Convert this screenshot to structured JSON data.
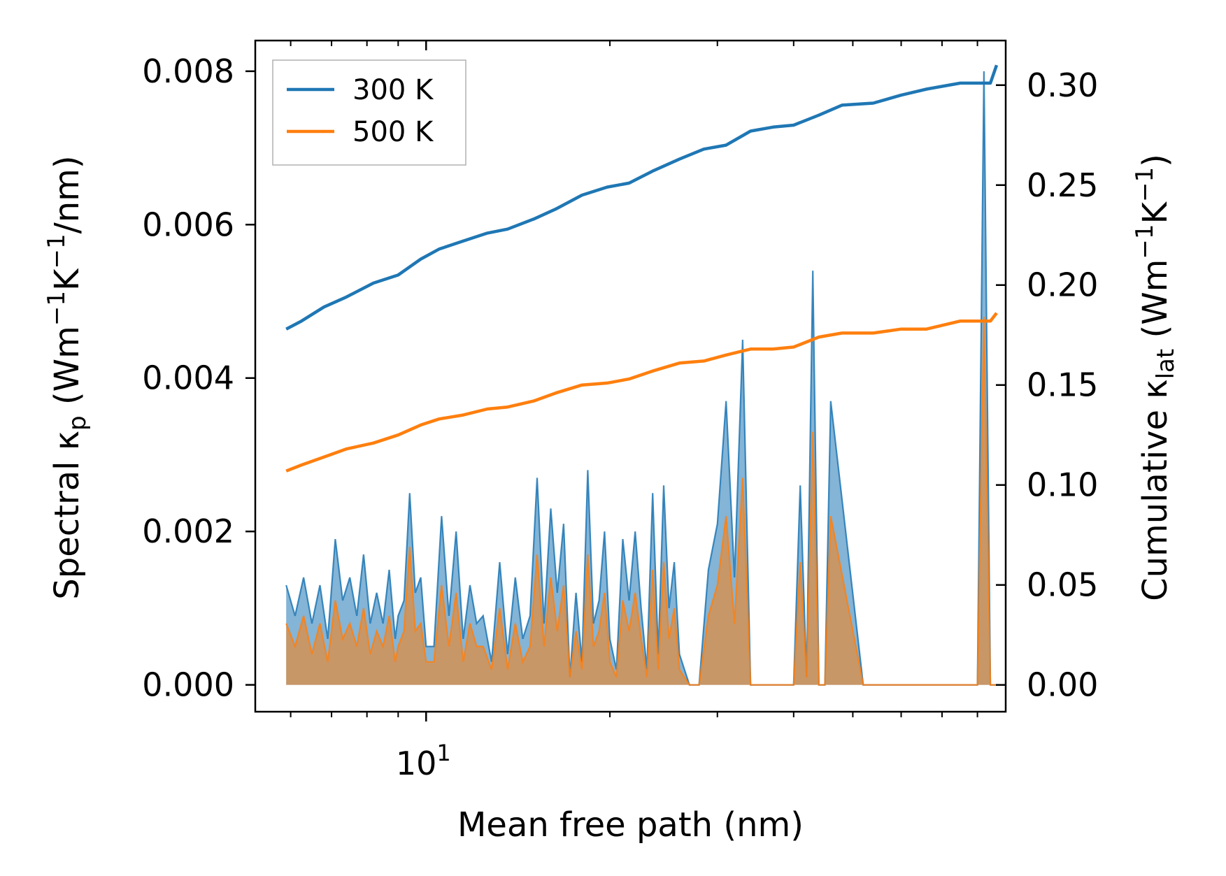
{
  "chart_data": {
    "type": "line",
    "xscale": "log",
    "xlabel": "Mean free path (nm)",
    "ylabel_left": [
      "Spectral κ",
      "p",
      " (Wm",
      "−1",
      "K",
      "−1",
      "/nm)"
    ],
    "ylabel_right": [
      "Cumulative κ",
      "lat",
      " (Wm",
      "−1",
      "K",
      "−1",
      ")"
    ],
    "xlim": [
      5.25,
      89
    ],
    "ylim_left": [
      -0.00035,
      0.0084
    ],
    "ylim_right": [
      -0.0134,
      0.3223
    ],
    "x_major_ticks": [
      {
        "value": 10,
        "base": "10",
        "exp": "1"
      }
    ],
    "x_minor_ticks": [
      6,
      7,
      8,
      9,
      20,
      30,
      40,
      50,
      60,
      70,
      80
    ],
    "y_left_ticks": [
      {
        "value": 0.0,
        "label": "0.000"
      },
      {
        "value": 0.002,
        "label": "0.002"
      },
      {
        "value": 0.004,
        "label": "0.004"
      },
      {
        "value": 0.006,
        "label": "0.006"
      },
      {
        "value": 0.008,
        "label": "0.008"
      }
    ],
    "y_right_ticks": [
      {
        "value": 0.0,
        "label": "0.00"
      },
      {
        "value": 0.05,
        "label": "0.05"
      },
      {
        "value": 0.1,
        "label": "0.10"
      },
      {
        "value": 0.15,
        "label": "0.15"
      },
      {
        "value": 0.2,
        "label": "0.20"
      },
      {
        "value": 0.25,
        "label": "0.25"
      },
      {
        "value": 0.3,
        "label": "0.30"
      }
    ],
    "legend_position": "top-left",
    "colors": {
      "s300": "#1f77b4",
      "s500": "#ff7f0e"
    },
    "cumulative_series": [
      {
        "name": "300 K",
        "color": "#1f77b4",
        "axis": "right",
        "x": [
          5.9,
          6.25,
          6.8,
          7.4,
          8.2,
          9.0,
          9.8,
          10.5,
          11.5,
          12.6,
          13.6,
          15.0,
          16.3,
          18.0,
          19.8,
          21.5,
          23.5,
          26.0,
          28.5,
          31.0,
          34.0,
          37.0,
          40.0,
          44.0,
          48.0,
          54.0,
          60.0,
          66.0,
          75.0,
          79.0,
          84.0,
          86.0
        ],
        "y": [
          0.178,
          0.182,
          0.189,
          0.194,
          0.201,
          0.205,
          0.213,
          0.218,
          0.222,
          0.226,
          0.228,
          0.233,
          0.238,
          0.245,
          0.249,
          0.251,
          0.257,
          0.263,
          0.268,
          0.27,
          0.277,
          0.279,
          0.28,
          0.285,
          0.29,
          0.291,
          0.295,
          0.298,
          0.301,
          0.301,
          0.301,
          0.31
        ]
      },
      {
        "name": "500 K",
        "color": "#ff7f0e",
        "axis": "right",
        "x": [
          5.9,
          6.25,
          6.8,
          7.4,
          8.2,
          9.0,
          9.8,
          10.5,
          11.5,
          12.6,
          13.6,
          15.0,
          16.3,
          18.0,
          19.8,
          21.5,
          23.5,
          26.0,
          28.5,
          31.0,
          34.0,
          37.0,
          40.0,
          44.0,
          48.0,
          54.0,
          60.0,
          66.0,
          75.0,
          79.0,
          84.0,
          86.0
        ],
        "y": [
          0.107,
          0.11,
          0.114,
          0.118,
          0.121,
          0.125,
          0.13,
          0.133,
          0.135,
          0.138,
          0.139,
          0.142,
          0.146,
          0.15,
          0.151,
          0.153,
          0.157,
          0.161,
          0.162,
          0.165,
          0.168,
          0.168,
          0.169,
          0.174,
          0.176,
          0.176,
          0.178,
          0.178,
          0.182,
          0.182,
          0.182,
          0.186
        ]
      }
    ],
    "spectral_series": [
      {
        "name": "300 K spectral",
        "color": "#1f77b4",
        "axis": "left",
        "x": [
          5.9,
          6.1,
          6.3,
          6.5,
          6.7,
          6.9,
          7.1,
          7.3,
          7.5,
          7.7,
          7.9,
          8.1,
          8.3,
          8.5,
          8.7,
          8.9,
          9.0,
          9.2,
          9.4,
          9.6,
          9.8,
          10.0,
          10.3,
          10.6,
          10.9,
          11.2,
          11.5,
          11.8,
          12.1,
          12.4,
          12.8,
          13.2,
          13.6,
          14.0,
          14.4,
          14.8,
          15.2,
          15.6,
          16.0,
          16.4,
          16.8,
          17.2,
          17.6,
          18.0,
          18.4,
          18.8,
          19.2,
          19.6,
          20.0,
          20.5,
          21.0,
          21.5,
          22.0,
          22.5,
          23.0,
          23.5,
          24.0,
          24.5,
          25.0,
          25.5,
          26.0,
          27.0,
          28.0,
          29.0,
          30.0,
          31.0,
          32.0,
          33.0,
          34.0,
          35.0,
          37.0,
          40.0,
          41.0,
          42.0,
          43.0,
          44.0,
          45.0,
          46.0,
          52.0,
          53.5,
          55.0,
          57.0,
          59.0,
          60.5,
          62.0,
          64.0,
          68.0,
          70.0,
          72.0,
          80.0,
          82.0,
          84.0,
          86.0
        ],
        "y": [
          0.0013,
          0.0009,
          0.0014,
          0.0008,
          0.0013,
          0.0006,
          0.0019,
          0.0011,
          0.0014,
          0.0009,
          0.0017,
          0.0008,
          0.0012,
          0.0008,
          0.0015,
          0.0006,
          0.0009,
          0.0011,
          0.0025,
          0.0012,
          0.0014,
          0.0005,
          0.0005,
          0.0022,
          0.0009,
          0.002,
          0.0006,
          0.0013,
          0.0008,
          0.0009,
          0.0003,
          0.0016,
          0.0004,
          0.0014,
          0.0006,
          0.0009,
          0.0027,
          0.0008,
          0.0023,
          0.0012,
          0.0021,
          0.0001,
          0.0012,
          0.0003,
          0.0028,
          0.0008,
          0.0011,
          0.002,
          0.0006,
          0.0002,
          0.0019,
          0.0011,
          0.002,
          0.001,
          0.0002,
          0.0025,
          0.0004,
          0.0026,
          0.001,
          0.0016,
          0.0004,
          0.0,
          0.0,
          0.0015,
          0.0021,
          0.0037,
          0.0014,
          0.0045,
          0.0,
          0.0,
          0.0,
          0.0,
          0.0026,
          0.0001,
          0.0054,
          0.0,
          0.0,
          0.0037,
          0.0,
          0.0,
          0.0,
          0.0,
          0.0,
          0.0,
          0.0,
          0.0,
          0.0,
          0.0,
          0.0,
          0.0,
          0.008,
          0.0,
          0.0
        ]
      },
      {
        "name": "500 K spectral",
        "color": "#ff7f0e",
        "axis": "left",
        "x": [
          5.9,
          6.1,
          6.3,
          6.5,
          6.7,
          6.9,
          7.1,
          7.3,
          7.5,
          7.7,
          7.9,
          8.1,
          8.3,
          8.5,
          8.7,
          8.9,
          9.0,
          9.2,
          9.4,
          9.6,
          9.8,
          10.0,
          10.3,
          10.6,
          10.9,
          11.2,
          11.5,
          11.8,
          12.1,
          12.4,
          12.8,
          13.2,
          13.6,
          14.0,
          14.4,
          14.8,
          15.2,
          15.6,
          16.0,
          16.4,
          16.8,
          17.2,
          17.6,
          18.0,
          18.4,
          18.8,
          19.2,
          19.6,
          20.0,
          20.5,
          21.0,
          21.5,
          22.0,
          22.5,
          23.0,
          23.5,
          24.0,
          24.5,
          25.0,
          25.5,
          26.0,
          27.0,
          28.0,
          29.0,
          30.0,
          31.0,
          32.0,
          33.0,
          34.0,
          35.0,
          37.0,
          40.0,
          41.0,
          42.0,
          43.0,
          44.0,
          45.0,
          46.0,
          52.0,
          53.5,
          55.0,
          57.0,
          59.0,
          60.5,
          62.0,
          64.0,
          68.0,
          70.0,
          72.0,
          80.0,
          82.0,
          84.0,
          86.0
        ],
        "y": [
          0.0008,
          0.0005,
          0.0009,
          0.0004,
          0.0008,
          0.0003,
          0.0011,
          0.0006,
          0.0008,
          0.0005,
          0.001,
          0.0004,
          0.0007,
          0.0005,
          0.0009,
          0.0003,
          0.0005,
          0.0007,
          0.0018,
          0.0007,
          0.0008,
          0.0003,
          0.0003,
          0.0013,
          0.0005,
          0.0012,
          0.0003,
          0.0008,
          0.0005,
          0.0005,
          0.0002,
          0.001,
          0.0002,
          0.0008,
          0.0003,
          0.0005,
          0.0017,
          0.0005,
          0.0014,
          0.0007,
          0.0013,
          0.0001,
          0.0007,
          0.0002,
          0.0017,
          0.0005,
          0.0007,
          0.0012,
          0.0003,
          0.0001,
          0.0011,
          0.0007,
          0.0012,
          0.0006,
          0.0001,
          0.0015,
          0.0002,
          0.0016,
          0.0006,
          0.001,
          0.0002,
          0.0,
          0.0,
          0.0009,
          0.0013,
          0.0022,
          0.0008,
          0.0027,
          0.0,
          0.0,
          0.0,
          0.0,
          0.0016,
          0.0001,
          0.0033,
          0.0,
          0.0,
          0.0022,
          0.0,
          0.0,
          0.0,
          0.0,
          0.0,
          0.0,
          0.0,
          0.0,
          0.0,
          0.0,
          0.0,
          0.0,
          0.0048,
          0.0,
          0.0
        ]
      }
    ]
  }
}
